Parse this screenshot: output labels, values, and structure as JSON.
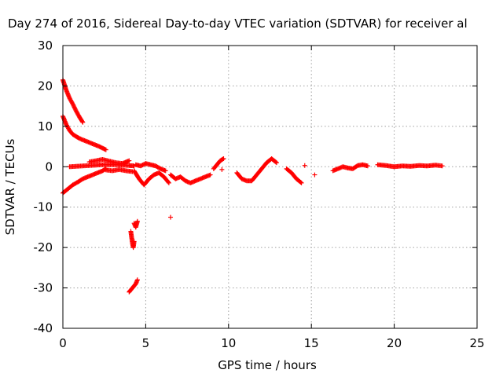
{
  "chart_data": {
    "type": "scatter",
    "title": "Day 274 of 2016, Sidereal Day-to-day VTEC variation (SDTVAR) for receiver al",
    "xlabel": "GPS time / hours",
    "ylabel": "SDTVAR / TECUs",
    "xlim": [
      0,
      25
    ],
    "ylim": [
      -40,
      30
    ],
    "xticks": [
      0,
      5,
      10,
      15,
      20,
      25
    ],
    "yticks": [
      -40,
      -30,
      -20,
      -10,
      0,
      10,
      20,
      30
    ],
    "grid": true,
    "marker": "+",
    "color": "#ff0000",
    "segments": [
      {
        "x": [
          0.0,
          0.3,
          0.6,
          0.9,
          1.2,
          1.5,
          1.8,
          2.1,
          2.4,
          2.6
        ],
        "y": [
          -6.5,
          -5.5,
          -4.5,
          -3.8,
          -3.0,
          -2.5,
          -2.0,
          -1.5,
          -1.0,
          -0.5
        ]
      },
      {
        "x": [
          0.0,
          0.2,
          0.4,
          0.6,
          0.8,
          1.0,
          1.2
        ],
        "y": [
          21.5,
          19.0,
          17.0,
          15.5,
          13.8,
          12.3,
          11.0
        ]
      },
      {
        "x": [
          0.0,
          0.2,
          0.4,
          0.6,
          0.8,
          1.0,
          1.3,
          1.6,
          1.9,
          2.2,
          2.6
        ],
        "y": [
          12.5,
          10.5,
          9.0,
          8.0,
          7.5,
          7.0,
          6.5,
          6.0,
          5.5,
          5.0,
          4.2
        ]
      },
      {
        "x": [
          0.4,
          0.8,
          1.2,
          1.6,
          2.0,
          2.4,
          2.8,
          3.2,
          3.6,
          4.0,
          4.3
        ],
        "y": [
          0.0,
          0.1,
          0.2,
          0.3,
          0.4,
          0.5,
          0.5,
          0.5,
          0.4,
          0.3,
          0.2
        ]
      },
      {
        "x": [
          1.6,
          2.0,
          2.4,
          2.8,
          3.2,
          3.6,
          4.0
        ],
        "y": [
          1.2,
          1.5,
          1.8,
          1.4,
          1.0,
          0.8,
          1.5
        ]
      },
      {
        "x": [
          2.6,
          3.0,
          3.4,
          3.8,
          4.2
        ],
        "y": [
          -0.8,
          -1.0,
          -0.7,
          -1.0,
          -1.2
        ]
      },
      {
        "x": [
          4.3,
          4.6,
          4.9,
          5.2,
          5.5,
          5.8,
          6.1,
          6.4
        ],
        "y": [
          -1.0,
          -3.0,
          -4.5,
          -3.0,
          -2.0,
          -1.5,
          -2.5,
          -4.0
        ]
      },
      {
        "x": [
          4.4,
          4.7,
          5.0,
          5.3,
          5.6,
          5.9,
          6.2
        ],
        "y": [
          0.5,
          0.2,
          0.8,
          0.5,
          0.2,
          -0.5,
          -1.0
        ]
      },
      {
        "x": [
          6.5,
          6.8,
          7.1,
          7.4,
          7.7,
          8.0,
          8.3,
          8.6,
          8.9
        ],
        "y": [
          -2.0,
          -3.0,
          -2.5,
          -3.5,
          -4.0,
          -3.5,
          -3.0,
          -2.5,
          -2.0
        ]
      },
      {
        "x": [
          9.1,
          9.3,
          9.5,
          9.7
        ],
        "y": [
          -0.5,
          0.5,
          1.5,
          2.0
        ]
      },
      {
        "x": [
          10.5,
          10.8,
          11.1,
          11.4,
          11.7,
          12.0,
          12.3,
          12.6,
          12.9
        ],
        "y": [
          -1.5,
          -3.0,
          -3.5,
          -3.5,
          -2.0,
          -0.5,
          1.0,
          2.0,
          1.0
        ]
      },
      {
        "x": [
          13.5,
          13.8,
          14.1,
          14.4
        ],
        "y": [
          -0.5,
          -1.5,
          -3.0,
          -4.0
        ]
      },
      {
        "x": [
          16.3,
          16.6,
          16.9,
          17.2,
          17.5,
          17.8,
          18.1,
          18.4
        ],
        "y": [
          -1.0,
          -0.5,
          0.0,
          -0.3,
          -0.5,
          0.3,
          0.5,
          0.2
        ]
      },
      {
        "x": [
          19.0,
          19.5,
          20.0,
          20.5,
          21.0,
          21.5,
          22.0,
          22.5,
          22.9
        ],
        "y": [
          0.5,
          0.3,
          0.0,
          0.2,
          0.1,
          0.3,
          0.2,
          0.4,
          0.2
        ]
      },
      {
        "x": [
          4.1,
          4.15,
          4.2,
          4.25,
          4.3
        ],
        "y": [
          -16.0,
          -17.5,
          -19.0,
          -20.0,
          -18.5
        ]
      },
      {
        "x": [
          4.3,
          4.4,
          4.5
        ],
        "y": [
          -14.0,
          -15.0,
          -13.5
        ]
      },
      {
        "x": [
          4.0,
          4.1,
          4.2,
          4.3,
          4.4,
          4.5
        ],
        "y": [
          -31.0,
          -30.5,
          -30.0,
          -29.5,
          -29.0,
          -28.0
        ]
      }
    ],
    "isolated": {
      "x": [
        6.5,
        15.2,
        14.6,
        9.6
      ],
      "y": [
        -12.5,
        -2.0,
        0.3,
        -0.7
      ]
    }
  }
}
